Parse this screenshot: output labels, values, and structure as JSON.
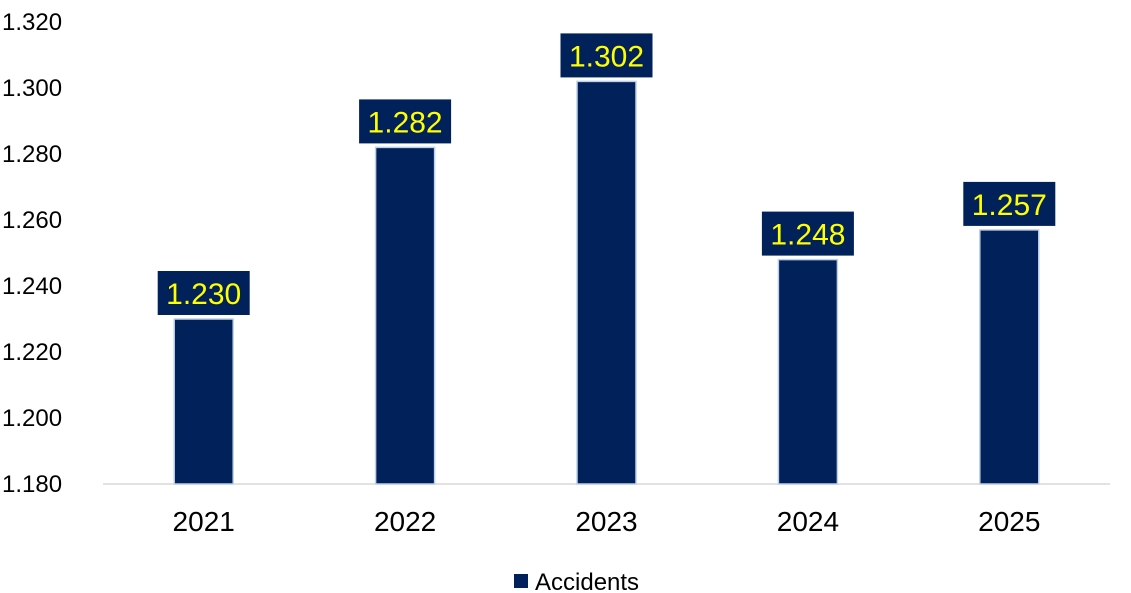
{
  "chart_data": {
    "type": "bar",
    "categories": [
      "2021",
      "2022",
      "2023",
      "2024",
      "2025"
    ],
    "series": [
      {
        "name": "Accidents",
        "values": [
          1.23,
          1.282,
          1.302,
          1.248,
          1.257
        ],
        "labels": [
          "1.230",
          "1.282",
          "1.302",
          "1.248",
          "1.257"
        ]
      }
    ],
    "ylim": [
      1.18,
      1.32
    ],
    "yticks": [
      "1.180",
      "1.200",
      "1.220",
      "1.240",
      "1.260",
      "1.280",
      "1.300",
      "1.320"
    ],
    "ytick_values": [
      1.18,
      1.2,
      1.22,
      1.24,
      1.26,
      1.28,
      1.3,
      1.32
    ],
    "grid": false,
    "legend_position": "bottom-center",
    "colors": {
      "bar": "#00215A",
      "bar_edge": "#BFD0E8",
      "label_background": "#00215A",
      "label_text": "#FFFF00",
      "axis": "#D9D9D9"
    }
  }
}
